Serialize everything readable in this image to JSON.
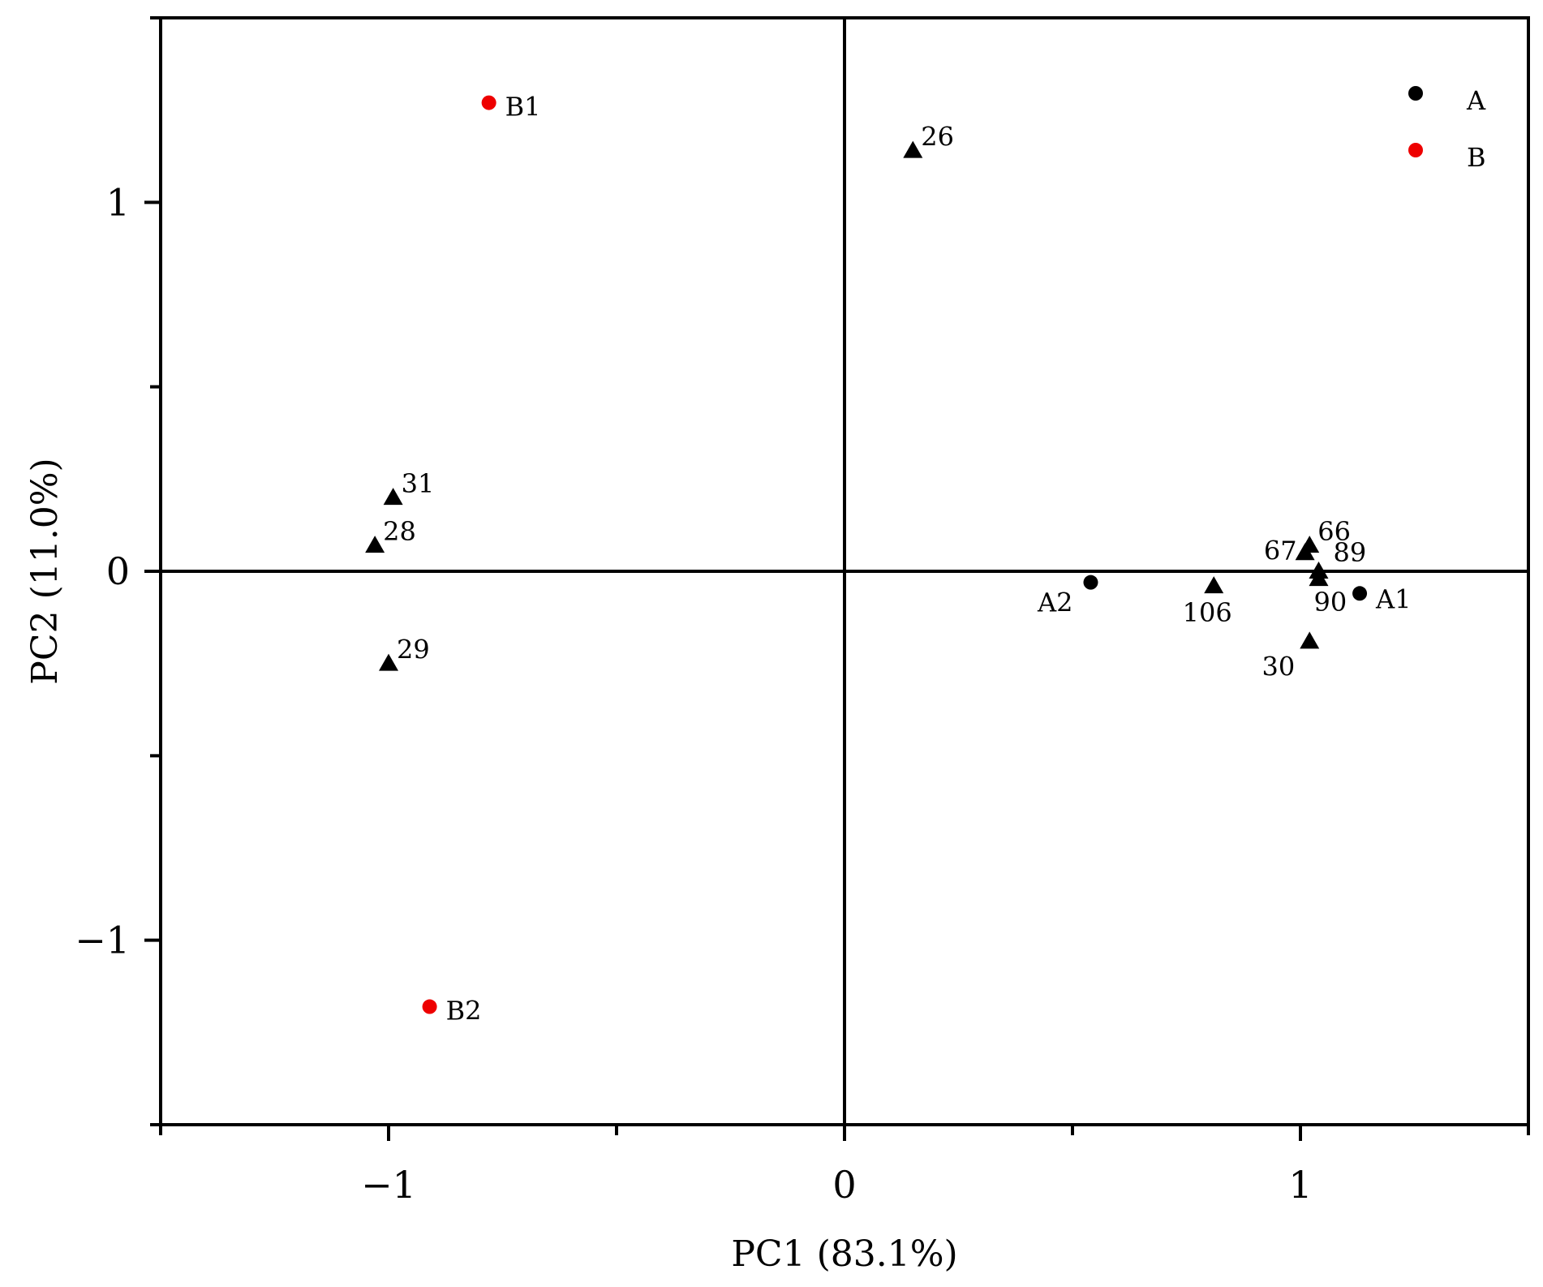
{
  "chart_data": {
    "type": "scatter",
    "xlabel": "PC1 (83.1%)",
    "ylabel": "PC2 (11.0%)",
    "xlim": [
      -1.5,
      1.5
    ],
    "ylim": [
      -1.5,
      1.5
    ],
    "xticks": [
      -1,
      0,
      1
    ],
    "xtick_labels": [
      "−1",
      "0",
      "1"
    ],
    "yticks": [
      -1,
      0,
      1
    ],
    "ytick_labels": [
      "−1",
      "0",
      "1"
    ],
    "grid": false,
    "zero_lines": true,
    "legend": {
      "placement": "top-right",
      "entries": [
        {
          "name": "A",
          "color": "#000000"
        },
        {
          "name": "B",
          "color": "#ee0000"
        }
      ]
    },
    "series": [
      {
        "name": "A",
        "marker": "circle",
        "color": "#000000",
        "points": [
          {
            "label": "A1",
            "x": 1.13,
            "y": -0.06
          },
          {
            "label": "A2",
            "x": 0.54,
            "y": -0.03
          }
        ]
      },
      {
        "name": "B",
        "marker": "circle",
        "color": "#ee0000",
        "points": [
          {
            "label": "B1",
            "x": -0.78,
            "y": 1.27
          },
          {
            "label": "B2",
            "x": -0.91,
            "y": -1.18
          }
        ]
      },
      {
        "marker": "triangle",
        "color": "#000000",
        "points": [
          {
            "label": "26",
            "x": 0.15,
            "y": 1.14
          },
          {
            "label": "31",
            "x": -0.99,
            "y": 0.2
          },
          {
            "label": "28",
            "x": -1.03,
            "y": 0.07
          },
          {
            "label": "29",
            "x": -1.0,
            "y": -0.25
          },
          {
            "label": "66",
            "x": 1.02,
            "y": 0.07
          },
          {
            "label": "67",
            "x": 1.01,
            "y": 0.05
          },
          {
            "label": "89",
            "x": 1.04,
            "y": 0.0
          },
          {
            "label": "90",
            "x": 1.04,
            "y": -0.02
          },
          {
            "label": "106",
            "x": 0.81,
            "y": -0.04
          },
          {
            "label": "30",
            "x": 1.02,
            "y": -0.19
          }
        ]
      }
    ]
  }
}
